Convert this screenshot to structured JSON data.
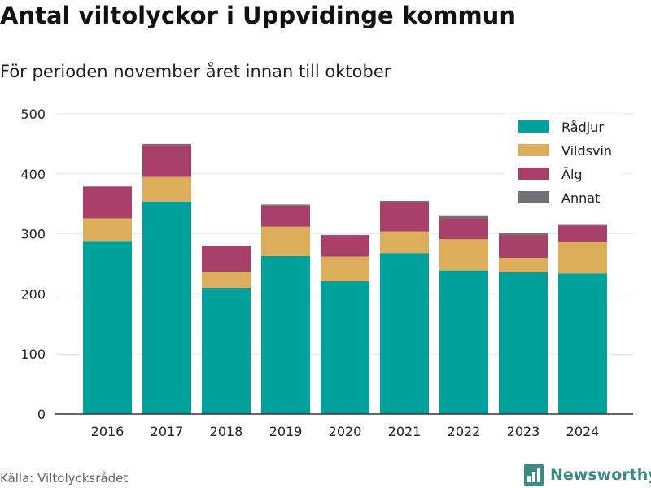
{
  "title": "Antal viltolyckor i Uppvidinge kommun",
  "subtitle": "För perioden november året innan till oktober",
  "source": "Källa: Viltolycksrådet",
  "brand": {
    "name": "Newsworthy",
    "icon": "bar-chart-logo-icon",
    "color": "#3a8c84"
  },
  "chart_data": {
    "type": "bar",
    "stacked": true,
    "categories": [
      "2016",
      "2017",
      "2018",
      "2019",
      "2020",
      "2021",
      "2022",
      "2023",
      "2024"
    ],
    "series": [
      {
        "name": "Rådjur",
        "color": "#00a19a",
        "values": [
          288,
          354,
          210,
          263,
          221,
          268,
          239,
          236,
          234
        ]
      },
      {
        "name": "Vildsvin",
        "color": "#dcad5a",
        "values": [
          38,
          41,
          27,
          49,
          41,
          36,
          52,
          24,
          53
        ]
      },
      {
        "name": "Älg",
        "color": "#a8406a",
        "values": [
          53,
          53,
          43,
          35,
          36,
          49,
          35,
          38,
          27
        ]
      },
      {
        "name": "Annat",
        "color": "#707075",
        "values": [
          0,
          2,
          0,
          2,
          0,
          2,
          5,
          3,
          1
        ]
      }
    ],
    "yticks": [
      0,
      100,
      200,
      300,
      400,
      500
    ],
    "ylim": [
      0,
      500
    ],
    "grid": true,
    "legend": "top-right"
  }
}
